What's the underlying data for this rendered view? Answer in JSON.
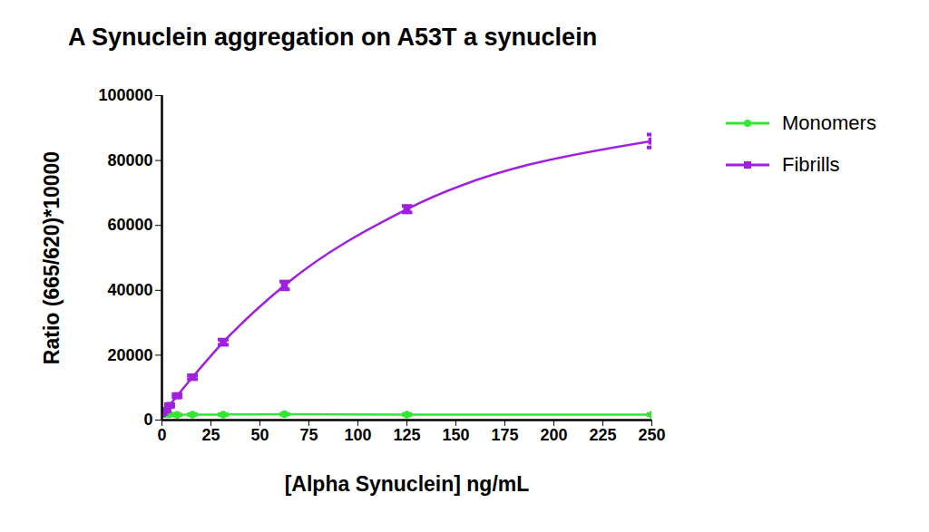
{
  "chart_data": {
    "type": "line",
    "title": "A Synuclein aggregation on A53T a synuclein",
    "x_label": "[Alpha Synuclein] ng/mL",
    "y_label": "Ratio (665/620)*10000",
    "x": [
      0,
      1.95,
      3.9,
      7.8,
      15.6,
      31.25,
      62.5,
      125,
      250
    ],
    "series": [
      {
        "name": "Monomers",
        "color": "#33e633",
        "marker": "circle",
        "line_style": "solid",
        "values": [
          1800,
          1900,
          1800,
          1600,
          1700,
          1700,
          1800,
          1700,
          1700
        ],
        "errors": [
          100,
          100,
          100,
          100,
          100,
          100,
          100,
          100,
          100
        ]
      },
      {
        "name": "Fibrills",
        "color": "#a020e0",
        "marker": "square",
        "line_style": "solid",
        "values": [
          2000,
          3000,
          4500,
          7500,
          13200,
          24000,
          41500,
          65000,
          86000
        ],
        "errors": [
          200,
          300,
          400,
          500,
          600,
          800,
          1200,
          1000,
          2000
        ]
      }
    ],
    "xlim": [
      0,
      250
    ],
    "xticks": [
      0,
      25,
      50,
      75,
      100,
      125,
      150,
      175,
      200,
      225,
      250
    ],
    "ylim": [
      0,
      100000
    ],
    "yticks": [
      0,
      20000,
      40000,
      60000,
      80000,
      100000
    ],
    "grid": false,
    "legend": "top-right"
  }
}
